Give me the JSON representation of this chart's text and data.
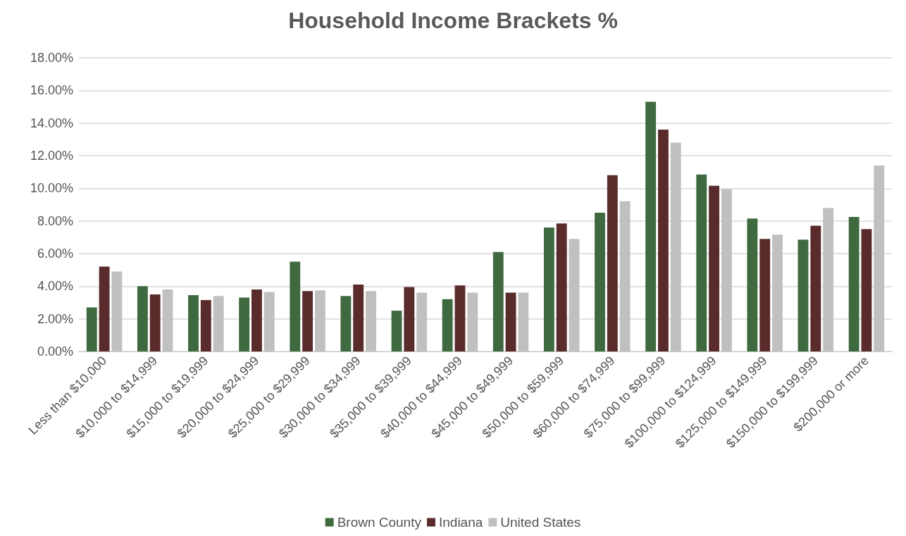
{
  "chart_data": {
    "type": "bar",
    "title": "Household Income Brackets %",
    "categories": [
      "Less than $10,000",
      "$10,000 to $14,999",
      "$15,000 to $19,999",
      "$20,000 to $24,999",
      "$25,000 to $29,999",
      "$30,000 to $34,999",
      "$35,000 to $39,999",
      "$40,000 to $44,999",
      "$45,000 to $49,999",
      "$50,000 to $59,999",
      "$60,000 to $74,999",
      "$75,000 to $99,999",
      "$100,000 to $124,999",
      "$125,000 to $149,999",
      "$150,000 to $199,999",
      "$200,000 or more"
    ],
    "series": [
      {
        "name": "Brown County",
        "color": "#3f6a40",
        "values": [
          2.7,
          4.0,
          3.45,
          3.3,
          5.5,
          3.4,
          2.5,
          3.2,
          6.1,
          7.6,
          8.5,
          15.3,
          10.85,
          8.15,
          6.85,
          8.25
        ]
      },
      {
        "name": "Indiana",
        "color": "#5a2b2b",
        "values": [
          5.2,
          3.5,
          3.15,
          3.8,
          3.7,
          4.1,
          3.95,
          4.05,
          3.6,
          7.85,
          10.8,
          13.6,
          10.15,
          6.9,
          7.7,
          7.5
        ]
      },
      {
        "name": "United States",
        "color": "#c0c0c0",
        "values": [
          4.9,
          3.8,
          3.4,
          3.65,
          3.75,
          3.7,
          3.6,
          3.6,
          3.6,
          6.9,
          9.2,
          12.8,
          9.95,
          7.15,
          8.8,
          11.4
        ]
      }
    ],
    "ylim": [
      0,
      18
    ],
    "yticks": [
      {
        "value": 0,
        "label": "0.00%"
      },
      {
        "value": 2,
        "label": "2.00%"
      },
      {
        "value": 4,
        "label": "4.00%"
      },
      {
        "value": 6,
        "label": "6.00%"
      },
      {
        "value": 8,
        "label": "8.00%"
      },
      {
        "value": 10,
        "label": "10.00%"
      },
      {
        "value": 12,
        "label": "12.00%"
      },
      {
        "value": 14,
        "label": "14.00%"
      },
      {
        "value": 16,
        "label": "16.00%"
      },
      {
        "value": 18,
        "label": "18.00%"
      }
    ],
    "grid": "y",
    "legend": "bottom"
  }
}
